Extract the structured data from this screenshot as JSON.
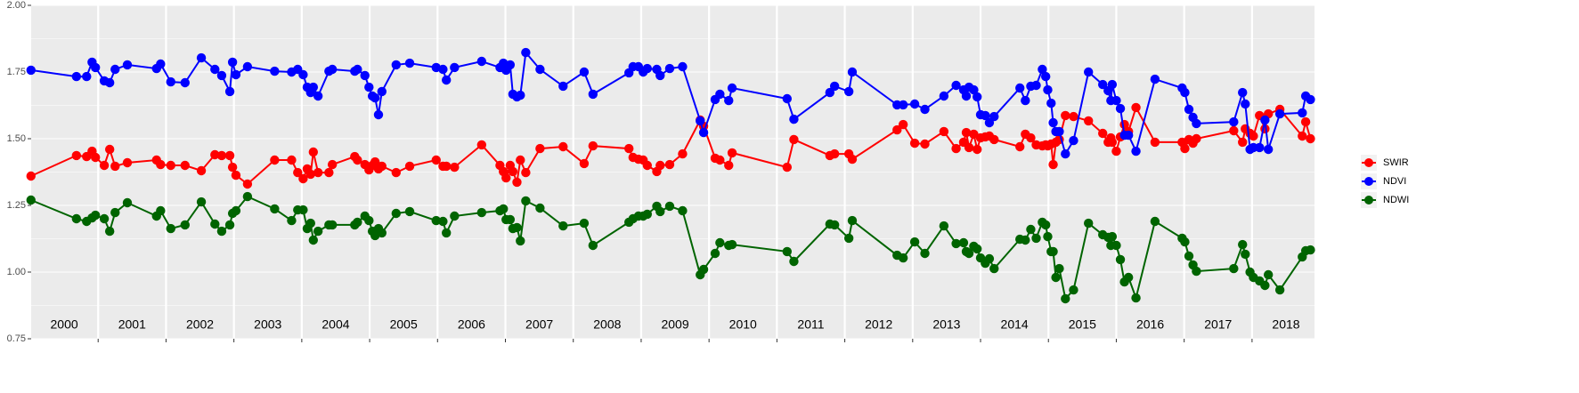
{
  "chart_data": {
    "type": "line",
    "x": [
      2000.01,
      2000.68,
      2000.83,
      2000.91,
      2000.96,
      2001.09,
      2001.17,
      2001.25,
      2001.43,
      2001.86,
      2001.92,
      2002.07,
      2002.28,
      2002.52,
      2002.72,
      2002.82,
      2002.94,
      2002.98,
      2003.03,
      2003.2,
      2003.6,
      2003.85,
      2003.94,
      2004.02,
      2004.08,
      2004.13,
      2004.17,
      2004.24,
      2004.4,
      2004.45,
      2004.78,
      2004.82,
      2004.93,
      2004.99,
      2005.04,
      2005.08,
      2005.13,
      2005.18,
      2005.39,
      2005.59,
      2005.98,
      2006.08,
      2006.13,
      2006.25,
      2006.65,
      2006.92,
      2006.97,
      2007.01,
      2007.07,
      2007.11,
      2007.17,
      2007.22,
      2007.3,
      2007.51,
      2007.85,
      2008.16,
      2008.29,
      2008.82,
      2008.88,
      2008.96,
      2009.03,
      2009.09,
      2009.23,
      2009.28,
      2009.42,
      2009.61,
      2009.87,
      2009.92,
      2010.09,
      2010.16,
      2010.29,
      2010.34,
      2011.15,
      2011.25,
      2011.78,
      2011.85,
      2012.06,
      2012.11,
      2012.77,
      2012.86,
      2013.03,
      2013.18,
      2013.46,
      2013.64,
      2013.75,
      2013.79,
      2013.83,
      2013.9,
      2013.95,
      2014.0,
      2014.07,
      2014.13,
      2014.2,
      2014.58,
      2014.66,
      2014.74,
      2014.82,
      2014.91,
      2014.96,
      2014.99,
      2015.04,
      2015.07,
      2015.11,
      2015.16,
      2015.25,
      2015.37,
      2015.59,
      2015.8,
      2015.88,
      2015.92,
      2015.94,
      2016.0,
      2016.06,
      2016.12,
      2016.18,
      2016.29,
      2016.57,
      2016.97,
      2017.01,
      2017.07,
      2017.13,
      2017.18,
      2017.73,
      2017.86,
      2017.9,
      2017.97,
      2018.02,
      2018.11,
      2018.19,
      2018.24,
      2018.41,
      2018.74,
      2018.79,
      2018.86
    ],
    "series": [
      {
        "name": "SWIR",
        "color": "#ff0000",
        "values": [
          1.36,
          1.437,
          1.433,
          1.453,
          1.43,
          1.4,
          1.46,
          1.397,
          1.41,
          1.42,
          1.403,
          1.4,
          1.4,
          1.38,
          1.44,
          1.437,
          1.437,
          1.393,
          1.363,
          1.33,
          1.42,
          1.42,
          1.373,
          1.35,
          1.387,
          1.367,
          1.45,
          1.373,
          1.373,
          1.403,
          1.433,
          1.42,
          1.403,
          1.383,
          1.4,
          1.413,
          1.387,
          1.397,
          1.373,
          1.397,
          1.42,
          1.397,
          1.397,
          1.393,
          1.477,
          1.4,
          1.377,
          1.353,
          1.4,
          1.377,
          1.337,
          1.42,
          1.373,
          1.463,
          1.47,
          1.407,
          1.473,
          1.463,
          1.43,
          1.423,
          1.42,
          1.4,
          1.377,
          1.4,
          1.403,
          1.443,
          1.57,
          1.547,
          1.427,
          1.42,
          1.4,
          1.447,
          1.393,
          1.497,
          1.437,
          1.443,
          1.443,
          1.423,
          1.533,
          1.553,
          1.483,
          1.48,
          1.527,
          1.463,
          1.487,
          1.523,
          1.467,
          1.517,
          1.46,
          1.503,
          1.507,
          1.51,
          1.497,
          1.47,
          1.517,
          1.503,
          1.477,
          1.473,
          1.477,
          1.473,
          1.48,
          1.403,
          1.487,
          1.497,
          1.587,
          1.583,
          1.567,
          1.52,
          1.487,
          1.503,
          1.487,
          1.453,
          1.507,
          1.553,
          1.527,
          1.617,
          1.487,
          1.487,
          1.463,
          1.497,
          1.483,
          1.5,
          1.53,
          1.487,
          1.537,
          1.52,
          1.51,
          1.587,
          1.537,
          1.593,
          1.61,
          1.51,
          1.563,
          1.5
        ]
      },
      {
        "name": "NDVI",
        "color": "#0000ff",
        "values": [
          1.757,
          1.733,
          1.733,
          1.787,
          1.767,
          1.717,
          1.71,
          1.76,
          1.777,
          1.763,
          1.78,
          1.713,
          1.71,
          1.803,
          1.76,
          1.737,
          1.677,
          1.787,
          1.74,
          1.77,
          1.753,
          1.75,
          1.76,
          1.74,
          1.693,
          1.673,
          1.693,
          1.66,
          1.753,
          1.76,
          1.753,
          1.76,
          1.737,
          1.693,
          1.66,
          1.653,
          1.59,
          1.677,
          1.777,
          1.783,
          1.767,
          1.76,
          1.72,
          1.767,
          1.79,
          1.767,
          1.783,
          1.757,
          1.777,
          1.667,
          1.657,
          1.663,
          1.823,
          1.76,
          1.697,
          1.75,
          1.667,
          1.747,
          1.77,
          1.77,
          1.75,
          1.763,
          1.76,
          1.737,
          1.763,
          1.77,
          1.567,
          1.523,
          1.647,
          1.667,
          1.643,
          1.69,
          1.65,
          1.573,
          1.673,
          1.697,
          1.677,
          1.75,
          1.627,
          1.627,
          1.63,
          1.61,
          1.66,
          1.7,
          1.683,
          1.66,
          1.693,
          1.683,
          1.657,
          1.59,
          1.587,
          1.56,
          1.583,
          1.69,
          1.643,
          1.697,
          1.7,
          1.76,
          1.733,
          1.683,
          1.633,
          1.56,
          1.527,
          1.527,
          1.443,
          1.493,
          1.75,
          1.703,
          1.68,
          1.643,
          1.703,
          1.643,
          1.613,
          1.513,
          1.513,
          1.453,
          1.723,
          1.69,
          1.673,
          1.61,
          1.58,
          1.557,
          1.563,
          1.673,
          1.63,
          1.46,
          1.467,
          1.467,
          1.57,
          1.46,
          1.593,
          1.597,
          1.66,
          1.647
        ]
      },
      {
        "name": "NDWI",
        "color": "#006400",
        "values": [
          1.27,
          1.2,
          1.19,
          1.203,
          1.213,
          1.2,
          1.153,
          1.223,
          1.26,
          1.21,
          1.23,
          1.163,
          1.177,
          1.263,
          1.18,
          1.153,
          1.177,
          1.22,
          1.23,
          1.283,
          1.237,
          1.193,
          1.233,
          1.233,
          1.163,
          1.183,
          1.12,
          1.153,
          1.177,
          1.177,
          1.177,
          1.187,
          1.21,
          1.193,
          1.153,
          1.137,
          1.163,
          1.147,
          1.22,
          1.227,
          1.193,
          1.19,
          1.147,
          1.21,
          1.223,
          1.23,
          1.237,
          1.197,
          1.197,
          1.163,
          1.167,
          1.117,
          1.267,
          1.24,
          1.173,
          1.183,
          1.1,
          1.187,
          1.2,
          1.21,
          1.21,
          1.217,
          1.247,
          1.227,
          1.247,
          1.23,
          0.99,
          1.01,
          1.07,
          1.11,
          1.1,
          1.103,
          1.077,
          1.04,
          1.18,
          1.177,
          1.127,
          1.193,
          1.063,
          1.053,
          1.113,
          1.07,
          1.173,
          1.107,
          1.11,
          1.077,
          1.07,
          1.097,
          1.087,
          1.053,
          1.033,
          1.05,
          1.013,
          1.123,
          1.12,
          1.16,
          1.127,
          1.187,
          1.177,
          1.133,
          1.077,
          1.077,
          0.98,
          1.013,
          0.9,
          0.933,
          1.183,
          1.14,
          1.13,
          1.1,
          1.133,
          1.1,
          1.047,
          0.963,
          0.98,
          0.903,
          1.19,
          1.127,
          1.113,
          1.06,
          1.027,
          1.003,
          1.013,
          1.103,
          1.067,
          1.0,
          0.98,
          0.967,
          0.95,
          0.99,
          0.933,
          1.057,
          1.08,
          1.083
        ]
      }
    ],
    "xlim": [
      2000,
      2018.92
    ],
    "xticks": [
      {
        "value": 2000.5,
        "label": "2000"
      },
      {
        "value": 2001.5,
        "label": "2001"
      },
      {
        "value": 2002.5,
        "label": "2002"
      },
      {
        "value": 2003.5,
        "label": "2003"
      },
      {
        "value": 2004.5,
        "label": "2004"
      },
      {
        "value": 2005.5,
        "label": "2005"
      },
      {
        "value": 2006.5,
        "label": "2006"
      },
      {
        "value": 2007.5,
        "label": "2007"
      },
      {
        "value": 2008.5,
        "label": "2008"
      },
      {
        "value": 2009.5,
        "label": "2009"
      },
      {
        "value": 2010.5,
        "label": "2010"
      },
      {
        "value": 2011.5,
        "label": "2011"
      },
      {
        "value": 2012.5,
        "label": "2012"
      },
      {
        "value": 2013.5,
        "label": "2013"
      },
      {
        "value": 2014.5,
        "label": "2014"
      },
      {
        "value": 2015.5,
        "label": "2015"
      },
      {
        "value": 2016.5,
        "label": "2016"
      },
      {
        "value": 2017.5,
        "label": "2017"
      },
      {
        "value": 2018.5,
        "label": "2018"
      }
    ],
    "year_breaks": [
      2001,
      2002,
      2003,
      2004,
      2005,
      2006,
      2007,
      2008,
      2009,
      2010,
      2011,
      2012,
      2013,
      2014,
      2015,
      2016,
      2017,
      2018
    ],
    "ylim": [
      0.75,
      2.0
    ],
    "yticks": [
      {
        "value": 0.75,
        "label": "0.75"
      },
      {
        "value": 1.0,
        "label": "1.00"
      },
      {
        "value": 1.25,
        "label": "1.25"
      },
      {
        "value": 1.5,
        "label": "1.50"
      },
      {
        "value": 1.75,
        "label": "1.75"
      },
      {
        "value": 2.0,
        "label": "2.00"
      }
    ],
    "grid": true,
    "legend": "right"
  }
}
